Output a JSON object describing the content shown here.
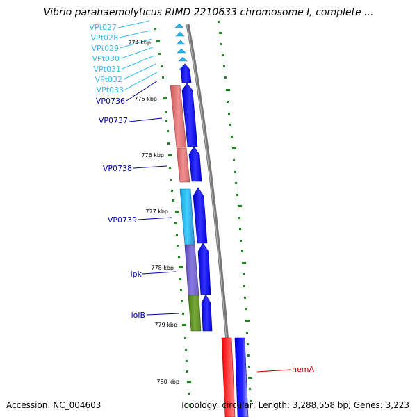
{
  "title": "Vibrio parahaemolyticus RIMD 2210633 chromosome I, complete ...",
  "footer": {
    "accession": "Accession: NC_004603",
    "stats": "Topology: circular; Length: 3,288,558 bp; Genes: 3,223"
  },
  "colors": {
    "backbone": "#888888",
    "ticks": "#1a8a1a",
    "trna": "#2ab5e6",
    "plus_strand": "#0000ee",
    "trna_label": "#33bbee",
    "gene_label": "#0000aa",
    "hemA": "#cc0000"
  },
  "scale_labels": [
    "774 kbp",
    "775 kbp",
    "776 kbp",
    "777 kbp",
    "778 kbp",
    "779 kbp",
    "780 kbp"
  ],
  "trna_labels": [
    "VPt027",
    "VPt028",
    "VPt029",
    "VPt030",
    "VPt031",
    "VPt032",
    "VPt033"
  ],
  "gene_labels": [
    "VP0736",
    "VP0737",
    "VP0738",
    "VP0739",
    "ipk",
    "lolB",
    "hemA"
  ]
}
